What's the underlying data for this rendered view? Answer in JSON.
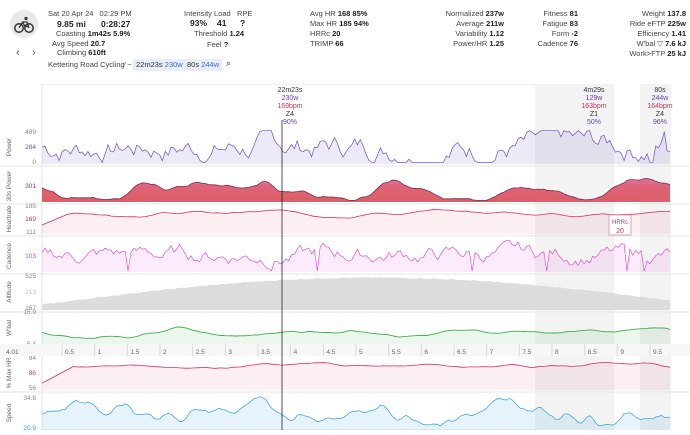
{
  "header": {
    "date": "Sat 20 Apr 24",
    "time": "02:29 PM",
    "distance": "9.85 mi",
    "duration": "0:28:27",
    "coasting_label": "Coasting",
    "coasting_value": "1m42s",
    "coasting_pct": "5.9%",
    "avg_speed_label": "Avg Speed",
    "avg_speed_value": "20.7",
    "climbing_label": "Climbing",
    "climbing_value": "610ft",
    "activity_name": "Kettering Road Cycling",
    "selection_duration": "22m23s",
    "selection_watts": "230w",
    "selection_np_label": "80s",
    "selection_np_watts": "244w",
    "intensity_label": "Intensity",
    "intensity_value": "93%",
    "load_label": "Load",
    "load_value": "41",
    "rpe_label": "RPE",
    "rpe_value": "?",
    "threshold_label": "Threshold",
    "threshold_value": "1.24",
    "feel_label": "Feel",
    "feel_value": "?"
  },
  "stats_col1": [
    {
      "label": "Avg HR",
      "value": "168",
      "extra": "85%"
    },
    {
      "label": "Max HR",
      "value": "185",
      "extra": "94%"
    },
    {
      "label": "HRRc",
      "value": "20",
      "extra": ""
    },
    {
      "label": "TRIMP",
      "value": "66",
      "extra": ""
    }
  ],
  "stats_col2": [
    {
      "label": "Normalized",
      "value": "237w"
    },
    {
      "label": "Average",
      "value": "211w"
    },
    {
      "label": "Variability",
      "value": "1.12"
    },
    {
      "label": "Power/HR",
      "value": "1.25"
    }
  ],
  "stats_col3": [
    {
      "label": "Fitness",
      "value": "81"
    },
    {
      "label": "Fatigue",
      "value": "83"
    },
    {
      "label": "Form",
      "value": "-2"
    },
    {
      "label": "Cadence",
      "value": "76"
    }
  ],
  "stats_col4": [
    {
      "label": "Weight",
      "value": "137.8"
    },
    {
      "label": "Ride eFTP",
      "value": "225w"
    },
    {
      "label": "Efficiency",
      "value": "1.41"
    },
    {
      "label": "W'bal ▽",
      "value": "7.6 kJ"
    },
    {
      "label": "Work>FTP",
      "value": "25 kJ"
    }
  ],
  "markers": [
    {
      "time": "22m23s",
      "watts": "230w",
      "hr": "169bpm",
      "zone": "Z4",
      "pct": "90%"
    },
    {
      "time": "4m29s",
      "watts": "129w",
      "hr": "163bpm",
      "zone": "Z1",
      "pct": "50%"
    },
    {
      "time": "80s",
      "watts": "244w",
      "hr": "164bpm",
      "zone": "Z4",
      "pct": "96%"
    }
  ],
  "hrrc_box": {
    "label": "HRRc",
    "value": "20"
  },
  "tracks": [
    {
      "name": "Power",
      "values": [
        "489",
        "284",
        "0"
      ]
    },
    {
      "name": "30s Power",
      "values": [
        "301"
      ]
    },
    {
      "name": "Heartrate",
      "values": [
        "185",
        "169",
        "111"
      ]
    },
    {
      "name": "Cadence",
      "values": [
        "103"
      ]
    },
    {
      "name": "Altitude",
      "values": [
        "525",
        "213",
        "167"
      ]
    },
    {
      "name": "W'bal",
      "values": [
        "16.9",
        "5.4"
      ]
    },
    {
      "name": "% Max HR",
      "values": [
        "94",
        "86",
        "56"
      ]
    },
    {
      "name": "Speed",
      "values": [
        "34.8",
        "20.9"
      ]
    }
  ],
  "axis": {
    "start_label": "4.01",
    "ticks": [
      "0.5",
      "1",
      "1.5",
      "2",
      "2.5",
      "3",
      "3.5",
      "4",
      "4.5",
      "5",
      "5.5",
      "6",
      "6.5",
      "7",
      "7.5",
      "8",
      "8.5",
      "9",
      "9.5"
    ]
  },
  "colors": {
    "power": "#6e4fc9",
    "heartrate": "#d42f5e",
    "cadence": "#e23ad0",
    "altitude": "#bdbdbd",
    "wbal": "#3fae49",
    "pct_hr": "#d42f5e",
    "speed": "#2f9fe0"
  }
}
